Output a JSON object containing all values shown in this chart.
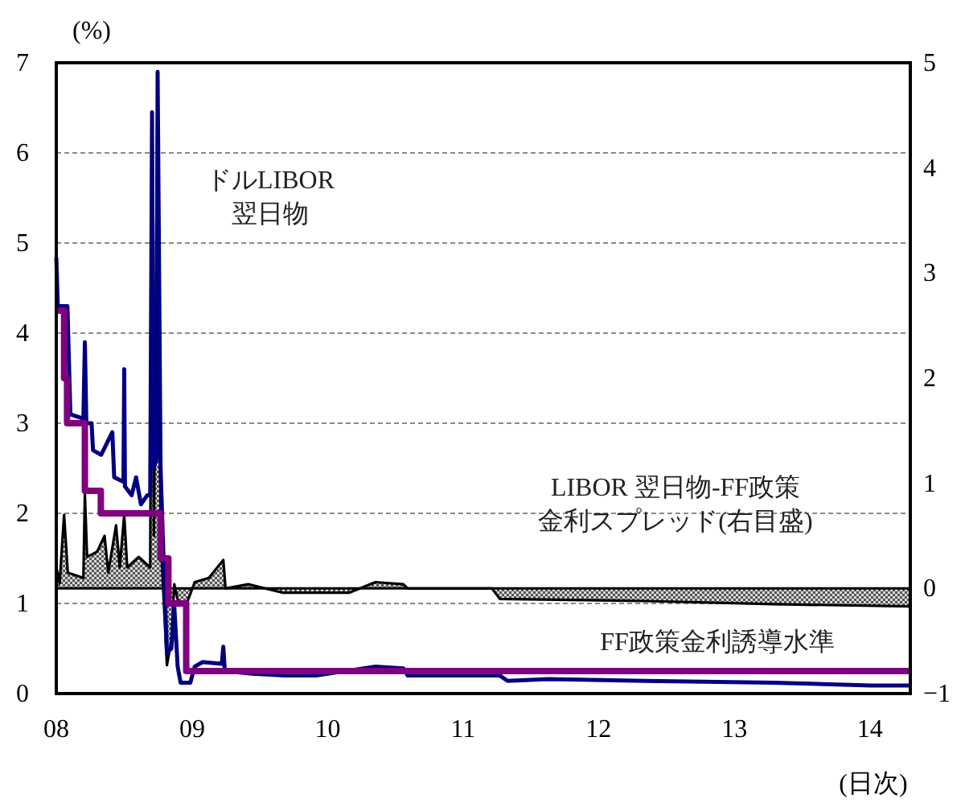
{
  "chart_data": {
    "type": "line",
    "ylabel": "(%)",
    "xlabel": "(日次)",
    "xlim": [
      "2008-01-01",
      "2014-04-20"
    ],
    "xticks": [
      {
        "value": "2008-01-01",
        "label": "08"
      },
      {
        "value": "2009-01-01",
        "label": "09"
      },
      {
        "value": "2010-01-01",
        "label": "10"
      },
      {
        "value": "2011-01-01",
        "label": "11"
      },
      {
        "value": "2012-01-01",
        "label": "12"
      },
      {
        "value": "2013-01-01",
        "label": "13"
      },
      {
        "value": "2014-01-01",
        "label": "14"
      }
    ],
    "ylim": [
      0,
      7
    ],
    "yticks": [
      0,
      1,
      2,
      3,
      4,
      5,
      6,
      7
    ],
    "y2lim": [
      -1,
      5
    ],
    "y2ticks": [
      -1,
      0,
      1,
      2,
      3,
      4,
      5
    ],
    "grid": "y",
    "series": [
      {
        "name": "LIBOR 翌日物-FF政策金利スプレッド(右目盛)",
        "type": "area",
        "axis": "y2",
        "color": "#000000",
        "x": [
          "2008-01-01",
          "2008-01-10",
          "2008-01-22",
          "2008-02-01",
          "2008-03-14",
          "2008-03-18",
          "2008-03-24",
          "2008-04-20",
          "2008-05-10",
          "2008-05-20",
          "2008-06-10",
          "2008-06-20",
          "2008-07-02",
          "2008-07-10",
          "2008-08-10",
          "2008-09-10",
          "2008-09-15",
          "2008-09-20",
          "2008-09-30",
          "2008-10-08",
          "2008-10-25",
          "2008-11-06",
          "2008-11-14",
          "2008-11-25",
          "2008-12-20",
          "2009-01-08",
          "2009-02-15",
          "2009-03-26",
          "2009-04-01",
          "2009-06-01",
          "2009-09-01",
          "2010-03-01",
          "2010-05-10",
          "2010-07-24",
          "2010-08-05",
          "2011-03-20",
          "2011-04-10",
          "2012-05-07",
          "2013-04-18",
          "2014-04-20"
        ],
        "values": [
          0.2,
          0.05,
          0.7,
          0.15,
          0.1,
          0.9,
          0.3,
          0.35,
          0.5,
          0.15,
          0.6,
          0.2,
          0.7,
          0.2,
          0.3,
          0.2,
          4.45,
          0.5,
          4.9,
          0.5,
          -0.73,
          -0.5,
          0.04,
          -0.14,
          -0.12,
          0.06,
          0.1,
          0.27,
          0.0,
          0.04,
          -0.04,
          -0.04,
          0.06,
          0.04,
          0.0,
          0.0,
          -0.1,
          -0.12,
          -0.15,
          -0.17
        ]
      },
      {
        "name": "ドルLIBOR翌日物",
        "color": "#000080",
        "x": [
          "2008-01-01",
          "2008-01-05",
          "2008-01-31",
          "2008-02-08",
          "2008-03-14",
          "2008-03-18",
          "2008-03-22",
          "2008-04-05",
          "2008-04-09",
          "2008-05-01",
          "2008-05-31",
          "2008-06-05",
          "2008-06-30",
          "2008-07-02",
          "2008-07-04",
          "2008-07-22",
          "2008-08-03",
          "2008-08-16",
          "2008-09-02",
          "2008-09-10",
          "2008-09-15",
          "2008-09-19",
          "2008-09-27",
          "2008-09-30",
          "2008-10-08",
          "2008-10-16",
          "2008-10-25",
          "2008-11-06",
          "2008-11-14",
          "2008-11-23",
          "2008-12-01",
          "2008-12-27",
          "2009-01-08",
          "2009-01-30",
          "2009-03-22",
          "2009-03-26",
          "2009-03-30",
          "2009-06-12",
          "2009-09-07",
          "2009-12-01",
          "2010-05-10",
          "2010-07-24",
          "2010-08-05",
          "2011-04-10",
          "2011-05-01",
          "2011-08-18",
          "2012-05-07",
          "2013-04-18",
          "2014-01-05",
          "2014-04-20"
        ],
        "values": [
          4.84,
          4.3,
          4.3,
          3.1,
          3.05,
          3.9,
          3.0,
          3.0,
          2.7,
          2.65,
          2.9,
          2.4,
          2.35,
          3.6,
          2.3,
          2.2,
          2.4,
          2.1,
          2.2,
          2.2,
          6.45,
          2.5,
          2.6,
          6.9,
          2.5,
          1.5,
          0.45,
          0.5,
          0.96,
          0.3,
          0.12,
          0.12,
          0.3,
          0.35,
          0.33,
          0.52,
          0.25,
          0.22,
          0.2,
          0.2,
          0.3,
          0.28,
          0.2,
          0.2,
          0.14,
          0.16,
          0.14,
          0.12,
          0.09,
          0.09
        ]
      },
      {
        "name": "FF政策金利誘導水準",
        "type": "step",
        "color": "#800080",
        "x": [
          "2008-01-01",
          "2008-01-22",
          "2008-01-30",
          "2008-03-18",
          "2008-04-30",
          "2008-10-08",
          "2008-10-29",
          "2008-12-16",
          "2014-04-20"
        ],
        "values": [
          4.25,
          3.5,
          3.0,
          2.25,
          2.0,
          1.5,
          1.0,
          0.25,
          0.25
        ]
      }
    ]
  }
}
